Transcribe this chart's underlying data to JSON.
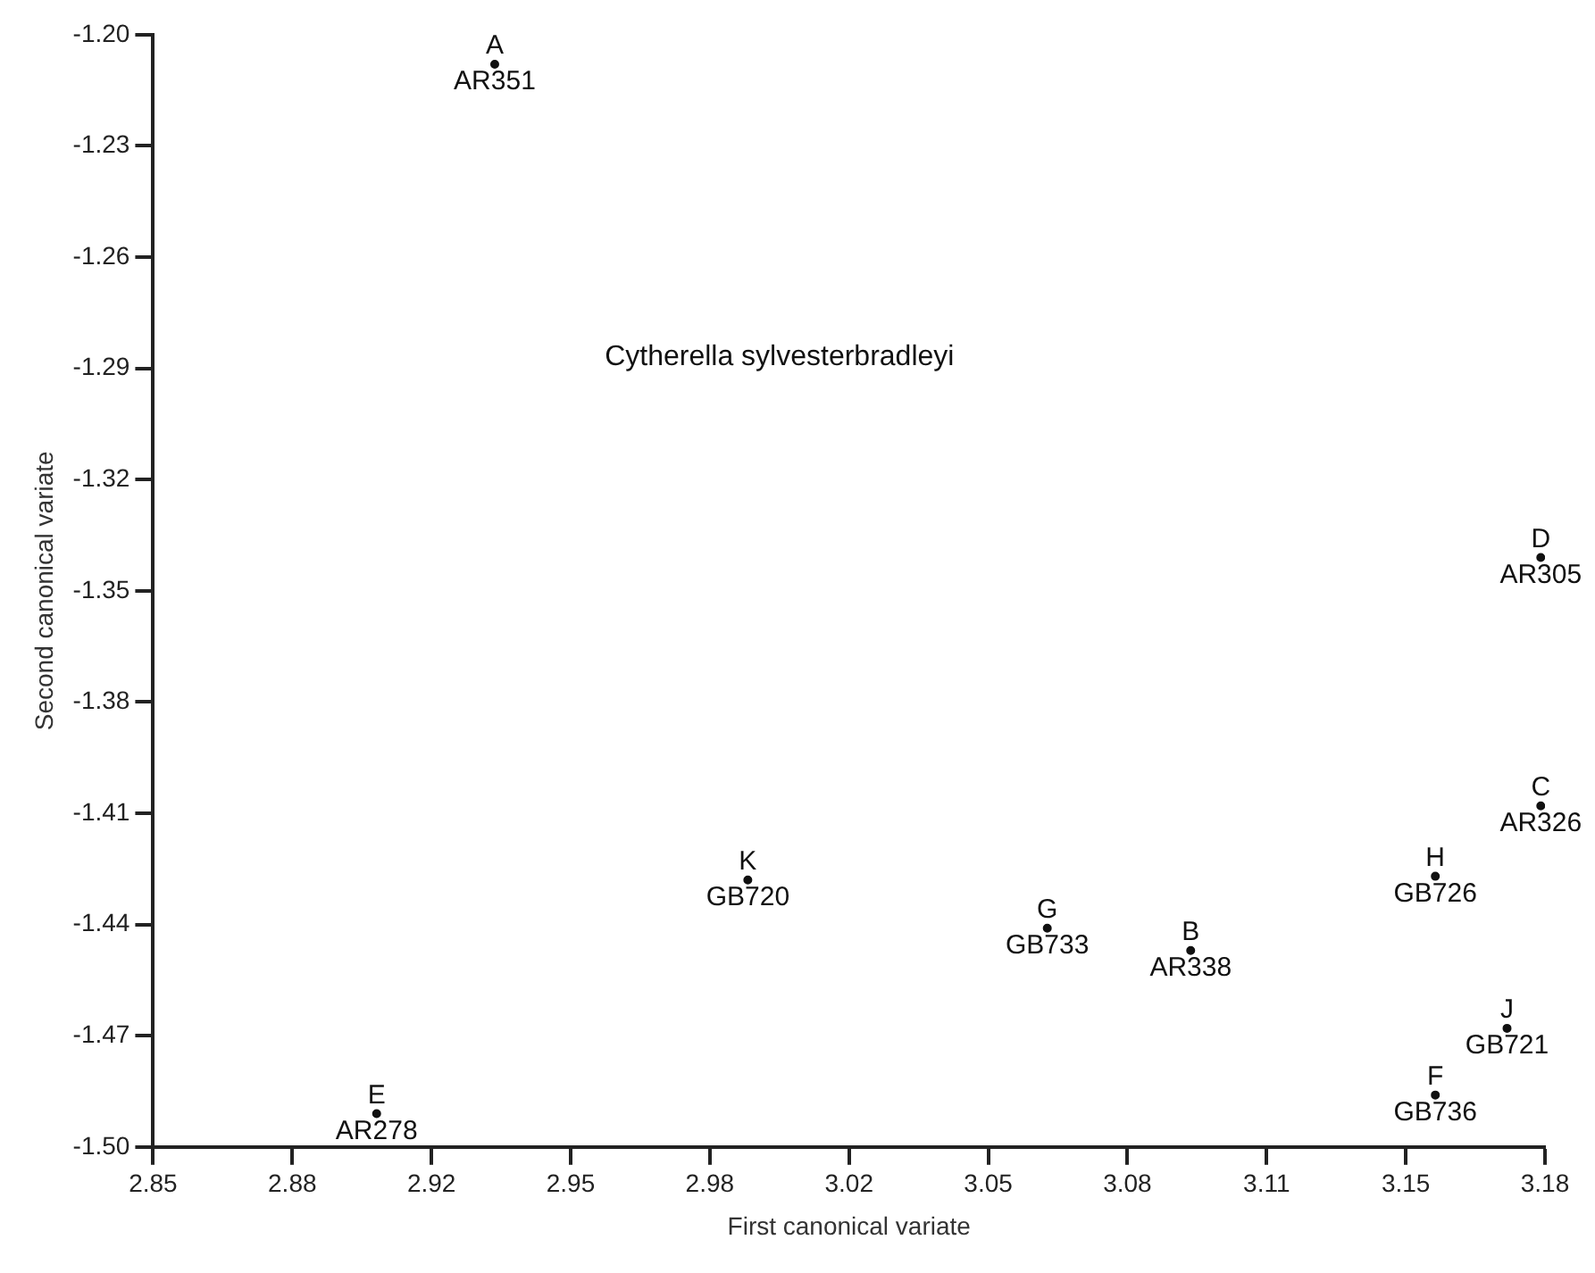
{
  "chart_data": {
    "type": "scatter",
    "xlabel": "First canonical variate",
    "ylabel": "Second canonical variate",
    "annotations": [
      "Cytherella sylvesterbradleyi"
    ],
    "marker": "circle",
    "grid": false,
    "legend": false,
    "xlim": [
      2.85,
      3.18
    ],
    "xticks": [
      2.85,
      {
        "value": 2.883,
        "label": "2.88"
      },
      {
        "value": 2.916,
        "label": "2.92"
      },
      {
        "value": 2.949,
        "label": "2.95"
      },
      {
        "value": 2.982,
        "label": "2.98"
      },
      {
        "value": 3.015,
        "label": "3.02"
      },
      {
        "value": 3.048,
        "label": "3.05"
      },
      {
        "value": 3.081,
        "label": "3.08"
      },
      {
        "value": 3.114,
        "label": "3.11"
      },
      {
        "value": 3.147,
        "label": "3.15"
      },
      {
        "value": 3.18,
        "label": "3.18"
      }
    ],
    "ylim": [
      -1.5,
      -1.2
    ],
    "yticks": [
      {
        "value": -1.2,
        "label": "-1.20"
      },
      {
        "value": -1.23,
        "label": "-1.23"
      },
      {
        "value": -1.26,
        "label": "-1.26"
      },
      {
        "value": -1.29,
        "label": "-1.29"
      },
      {
        "value": -1.32,
        "label": "-1.32"
      },
      {
        "value": -1.35,
        "label": "-1.35"
      },
      {
        "value": -1.38,
        "label": "-1.38"
      },
      {
        "value": -1.41,
        "label": "-1.41"
      },
      {
        "value": -1.44,
        "label": "-1.44"
      },
      {
        "value": -1.47,
        "label": "-1.47"
      },
      {
        "value": -1.5,
        "label": "-1.50"
      }
    ],
    "series": [
      {
        "color": "#111111",
        "x": [
          2.931,
          3.179,
          3.179,
          3.154,
          2.991,
          3.062,
          3.096,
          3.171,
          3.154,
          2.903
        ],
        "values": [
          -1.208,
          -1.341,
          -1.408,
          -1.427,
          -1.428,
          -1.441,
          -1.447,
          -1.468,
          -1.486,
          -1.491
        ],
        "value_labels": [
          "A\nAR351",
          "D\nAR305",
          "C\nAR326",
          "H\nGB726",
          "K\nGB720",
          "G\nGB733",
          "B\nAR338",
          "J\nGB721",
          "F\nGB736",
          "E\nAR278"
        ]
      }
    ]
  }
}
